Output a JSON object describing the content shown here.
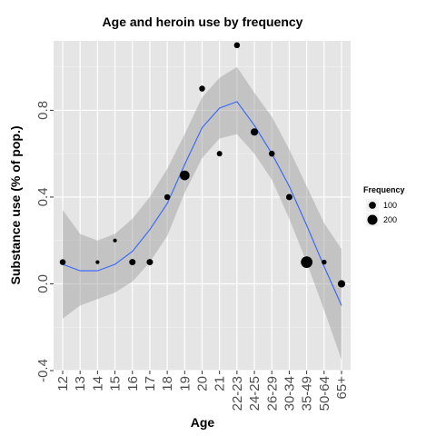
{
  "chart_data": {
    "type": "scatter",
    "title": "Age and heroin use by frequency",
    "xlabel": "Age",
    "ylabel": "Substance use (% of pop.)",
    "categories": [
      "12",
      "13",
      "14",
      "15",
      "16",
      "17",
      "18",
      "19",
      "20",
      "21",
      "22-23",
      "24-25",
      "26-29",
      "30-34",
      "35-49",
      "50-64",
      "65+"
    ],
    "ylim": [
      -0.4,
      1.12
    ],
    "yticks": [
      -0.4,
      0.0,
      0.4,
      0.8
    ],
    "ytick_labels": [
      "-0.4",
      "0.0",
      "0.4",
      "0.8"
    ],
    "grid": true,
    "points": {
      "name": "observed",
      "values": [
        0.1,
        null,
        0.1,
        0.2,
        0.1,
        0.1,
        0.4,
        0.5,
        0.9,
        0.6,
        1.1,
        0.7,
        0.6,
        0.4,
        0.1,
        0.1,
        0.0
      ],
      "frequency": [
        70,
        null,
        30,
        30,
        80,
        80,
        70,
        190,
        70,
        60,
        70,
        110,
        70,
        80,
        270,
        50,
        110
      ]
    },
    "smooth": {
      "name": "loess fit",
      "values": [
        0.09,
        0.06,
        0.06,
        0.09,
        0.15,
        0.25,
        0.37,
        0.55,
        0.72,
        0.81,
        0.84,
        0.73,
        0.6,
        0.45,
        0.27,
        0.08,
        -0.1
      ],
      "lower": [
        -0.16,
        -0.1,
        -0.07,
        -0.04,
        0.01,
        0.1,
        0.22,
        0.42,
        0.58,
        0.67,
        0.69,
        0.6,
        0.48,
        0.3,
        0.1,
        -0.12,
        -0.35
      ],
      "upper": [
        0.34,
        0.23,
        0.2,
        0.23,
        0.3,
        0.4,
        0.53,
        0.69,
        0.86,
        0.95,
        1.0,
        0.88,
        0.77,
        0.62,
        0.45,
        0.28,
        0.16
      ],
      "line_color": "#3366ff",
      "band_color": "#999999"
    },
    "legend": {
      "title": "Frequency",
      "placement": "right",
      "entries": [
        {
          "label": "100",
          "frequency": 100
        },
        {
          "label": "200",
          "frequency": 200
        }
      ]
    },
    "colors": {
      "panel": "#e5e5e5",
      "grid": "#ffffff",
      "point": "#000000"
    }
  }
}
